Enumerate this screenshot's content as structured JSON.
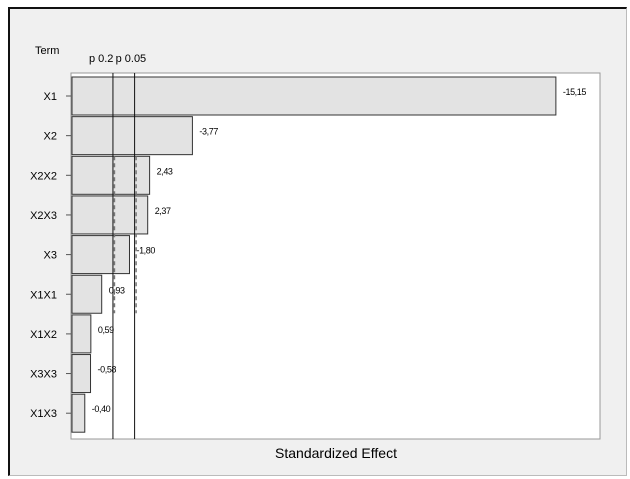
{
  "chart_data": {
    "type": "bar",
    "orientation": "horizontal",
    "term_header": "Term",
    "categories": [
      "X1",
      "X2",
      "X2X2",
      "X2X3",
      "X3",
      "X1X1",
      "X1X2",
      "X3X3",
      "X1X3"
    ],
    "values": [
      15.15,
      3.77,
      2.43,
      2.37,
      1.8,
      0.93,
      0.59,
      0.58,
      0.4
    ],
    "value_labels": [
      "-15,15",
      "-3,77",
      "2,43",
      "2,37",
      "-1,80",
      "0,93",
      "0,59",
      "-0,58",
      "-0,40"
    ],
    "reference_lines": [
      {
        "label": "p 0.2",
        "value": 1.282,
        "style": "dashed"
      },
      {
        "label": "p 0.05",
        "value": 1.96,
        "style": "dashed"
      }
    ],
    "xlabel": "Standardized Effect",
    "xlim": [
      0,
      16.5
    ],
    "bar_color": "#e3e3e3",
    "bar_edge_color": "#333333",
    "grid": false
  }
}
